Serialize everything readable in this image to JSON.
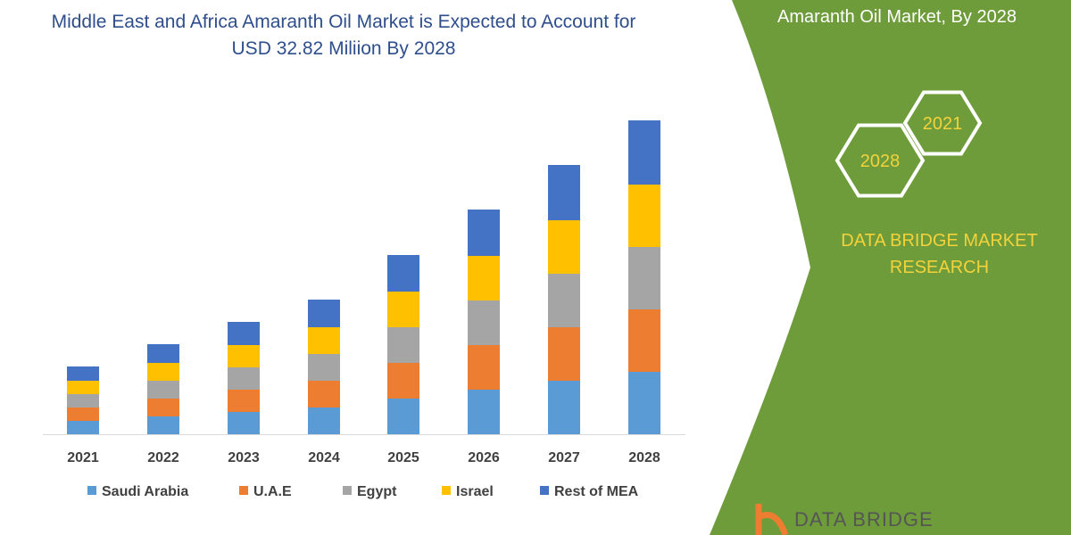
{
  "title": "Middle East and Africa Amaranth Oil Market is Expected to Account for USD 32.82 Miliion By 2028",
  "panel": {
    "title": "Amaranth Oil Market, By 2028",
    "hex_labels": [
      "2021",
      "2028"
    ],
    "brand": "DATA BRIDGE MARKET RESEARCH",
    "logo_text": "DATA BRIDGE",
    "bg_color": "#6e9c3a",
    "accent_color": "#f4d23a"
  },
  "chart_data": {
    "type": "bar",
    "stacked": true,
    "title": "Middle East and Africa Amaranth Oil Market is Expected to Account for USD 32.82 Miliion By 2028",
    "xlabel": "",
    "ylabel": "",
    "y_axis_shown": false,
    "grid": false,
    "legend_position": "bottom",
    "categories": [
      "2021",
      "2022",
      "2023",
      "2024",
      "2025",
      "2026",
      "2027",
      "2028"
    ],
    "series": [
      {
        "name": "Saudi Arabia",
        "color": "#5b9bd5",
        "values": [
          15,
          20,
          25,
          30,
          40,
          50,
          60,
          70
        ]
      },
      {
        "name": "U.A.E",
        "color": "#ed7d31",
        "values": [
          15,
          20,
          25,
          30,
          40,
          50,
          60,
          70
        ]
      },
      {
        "name": "Egypt",
        "color": "#a5a5a5",
        "values": [
          15,
          20,
          25,
          30,
          40,
          50,
          60,
          70
        ]
      },
      {
        "name": "Israel",
        "color": "#ffc000",
        "values": [
          15,
          20,
          25,
          30,
          40,
          50,
          60,
          70
        ]
      },
      {
        "name": "Rest of MEA",
        "color": "#4472c4",
        "values": [
          16,
          21,
          26,
          31,
          41,
          52,
          62,
          72
        ]
      }
    ]
  }
}
